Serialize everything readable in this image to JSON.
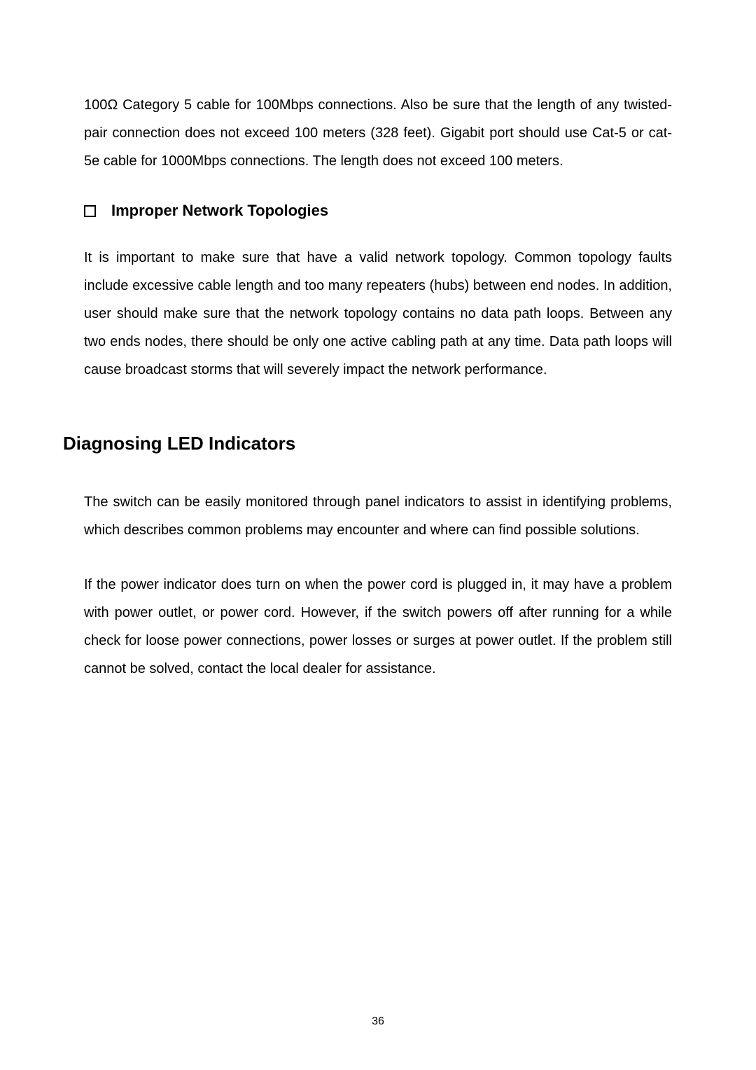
{
  "para1": "100Ω Category 5 cable for 100Mbps connections. Also be sure that the length of any twisted-pair connection does not exceed 100 meters (328 feet). Gigabit port should use Cat-5 or cat-5e cable for 1000Mbps connections. The length does not exceed 100 meters.",
  "sub_heading": "Improper Network Topologies",
  "para2": "It is important to make sure that have a valid network topology. Common topology faults include excessive cable length and too many repeaters (hubs) between end nodes. In addition, user should make sure that the network topology contains no data path loops. Between any two ends nodes, there should be only one active cabling path at any time. Data path loops will cause broadcast storms that will severely impact the network performance.",
  "section_heading": "Diagnosing LED Indicators",
  "para3": "The switch can be easily monitored through panel indicators to assist in identifying problems, which describes common problems may encounter and where can find possible solutions.",
  "para4": "If the power indicator does turn on when the power cord is plugged in, it may have a problem with power outlet, or power cord. However, if the switch powers off after running for a while check for loose power connections, power losses or surges at power outlet. If the problem still cannot be solved, contact the local dealer for assistance.",
  "page_number": "36"
}
